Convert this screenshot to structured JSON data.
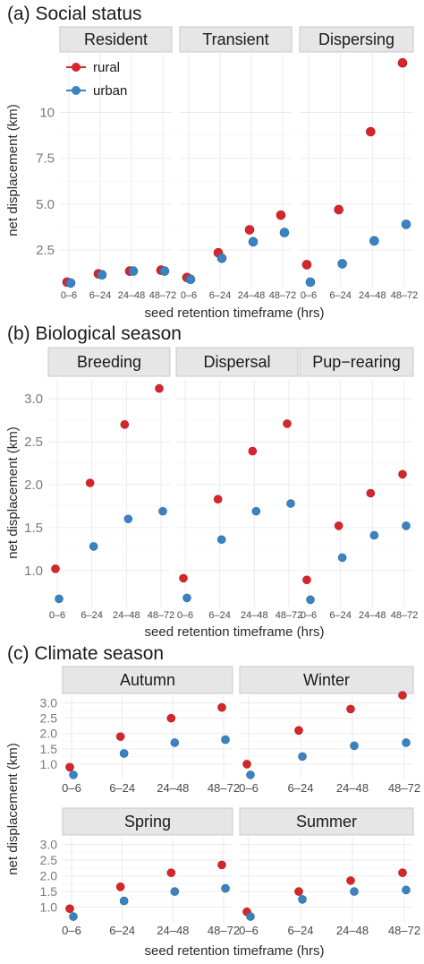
{
  "chart_data": {
    "type": "scatter",
    "series_names": [
      "rural",
      "urban"
    ],
    "colors": {
      "rural": "#d7262b",
      "urban": "#3b82c0"
    },
    "shared_ylabel": "net displacement (km)",
    "shared_xlabel": "seed retention timeframe (hrs)",
    "categories": [
      "0–6",
      "6–24",
      "24–48",
      "48–72"
    ],
    "panels": [
      {
        "label": "(a) Social status",
        "ylim": [
          0.5,
          13.2
        ],
        "yticks": [
          "2.5",
          "5.0",
          "7.5",
          "10"
        ],
        "ytick_values": [
          2.5,
          5.0,
          7.5,
          10
        ],
        "facets": [
          {
            "title": "Resident",
            "rural": [
              0.75,
              1.2,
              1.35,
              1.4
            ],
            "urban": [
              0.7,
              1.15,
              1.35,
              1.35
            ]
          },
          {
            "title": "Transient",
            "rural": [
              1.0,
              2.35,
              3.6,
              4.4
            ],
            "urban": [
              0.9,
              2.05,
              2.95,
              3.45
            ]
          },
          {
            "title": "Dispersing",
            "rural": [
              1.7,
              4.7,
              8.95,
              12.7
            ],
            "urban": [
              0.75,
              1.75,
              3.0,
              3.9
            ]
          }
        ]
      },
      {
        "label": "(b) Biological season",
        "ylim": [
          0.58,
          3.22
        ],
        "yticks": [
          "1.0",
          "1.5",
          "2.0",
          "2.5",
          "3.0"
        ],
        "ytick_values": [
          1.0,
          1.5,
          2.0,
          2.5,
          3.0
        ],
        "facets": [
          {
            "title": "Breeding",
            "rural": [
              1.02,
              2.02,
              2.7,
              3.12
            ],
            "urban": [
              0.67,
              1.28,
              1.6,
              1.69
            ]
          },
          {
            "title": "Dispersal",
            "rural": [
              0.91,
              1.83,
              2.39,
              2.71
            ],
            "urban": [
              0.68,
              1.36,
              1.69,
              1.78
            ]
          },
          {
            "title": "Pup−rearing",
            "rural": [
              0.89,
              1.52,
              1.9,
              2.12
            ],
            "urban": [
              0.66,
              1.15,
              1.41,
              1.52
            ]
          }
        ]
      },
      {
        "label": "(c) Climate season",
        "ylim": [
          0.5,
          3.25
        ],
        "yticks": [
          "1.0",
          "1.5",
          "2.0",
          "2.5",
          "3.0"
        ],
        "ytick_values": [
          1.0,
          1.5,
          2.0,
          2.5,
          3.0
        ],
        "facets": [
          {
            "title": "Autumn",
            "rural": [
              0.9,
              1.9,
              2.5,
              2.85
            ],
            "urban": [
              0.65,
              1.35,
              1.7,
              1.8
            ]
          },
          {
            "title": "Winter",
            "rural": [
              1.0,
              2.1,
              2.8,
              3.25
            ],
            "urban": [
              0.65,
              1.25,
              1.6,
              1.7
            ]
          },
          {
            "title": "Spring",
            "rural": [
              0.95,
              1.65,
              2.1,
              2.35
            ],
            "urban": [
              0.7,
              1.2,
              1.5,
              1.6
            ]
          },
          {
            "title": "Summer",
            "rural": [
              0.85,
              1.5,
              1.85,
              2.1
            ],
            "urban": [
              0.7,
              1.25,
              1.5,
              1.55
            ]
          }
        ]
      }
    ]
  }
}
